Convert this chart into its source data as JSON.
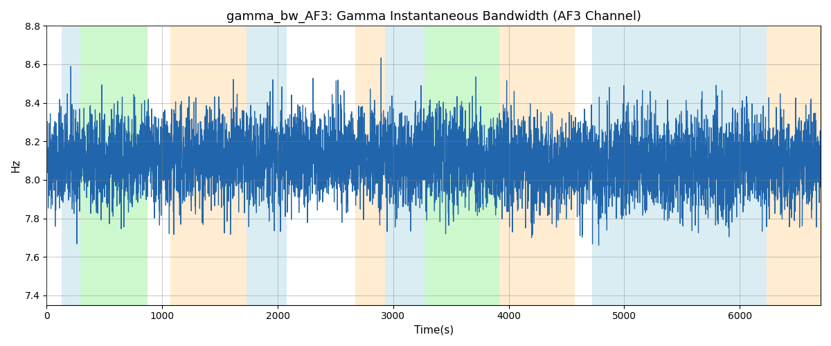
{
  "title": "gamma_bw_AF3: Gamma Instantaneous Bandwidth (AF3 Channel)",
  "xlabel": "Time(s)",
  "ylabel": "Hz",
  "xlim": [
    0,
    6700
  ],
  "ylim": [
    7.35,
    8.78
  ],
  "yticks": [
    7.4,
    7.6,
    7.8,
    8.0,
    8.2,
    8.4,
    8.6,
    8.8
  ],
  "xticks": [
    0,
    1000,
    2000,
    3000,
    4000,
    5000,
    6000
  ],
  "line_color": "#2166ac",
  "line_width": 0.9,
  "background_color": "#ffffff",
  "bands": [
    {
      "xmin": 130,
      "xmax": 290,
      "color": "#add8e6",
      "alpha": 0.45
    },
    {
      "xmin": 290,
      "xmax": 870,
      "color": "#90ee90",
      "alpha": 0.45
    },
    {
      "xmin": 1070,
      "xmax": 1730,
      "color": "#ffd59a",
      "alpha": 0.45
    },
    {
      "xmin": 1730,
      "xmax": 2080,
      "color": "#add8e6",
      "alpha": 0.45
    },
    {
      "xmin": 2670,
      "xmax": 2930,
      "color": "#ffd59a",
      "alpha": 0.45
    },
    {
      "xmin": 2930,
      "xmax": 3270,
      "color": "#add8e6",
      "alpha": 0.45
    },
    {
      "xmin": 3270,
      "xmax": 3920,
      "color": "#90ee90",
      "alpha": 0.45
    },
    {
      "xmin": 3920,
      "xmax": 4570,
      "color": "#ffd59a",
      "alpha": 0.45
    },
    {
      "xmin": 4720,
      "xmax": 6230,
      "color": "#add8e6",
      "alpha": 0.45
    },
    {
      "xmin": 6230,
      "xmax": 6700,
      "color": "#ffd59a",
      "alpha": 0.45
    }
  ],
  "seed": 42,
  "n_points": 6700,
  "signal_mean": 8.1,
  "noise_std": 0.13,
  "slow_drift_std": 0.0008
}
